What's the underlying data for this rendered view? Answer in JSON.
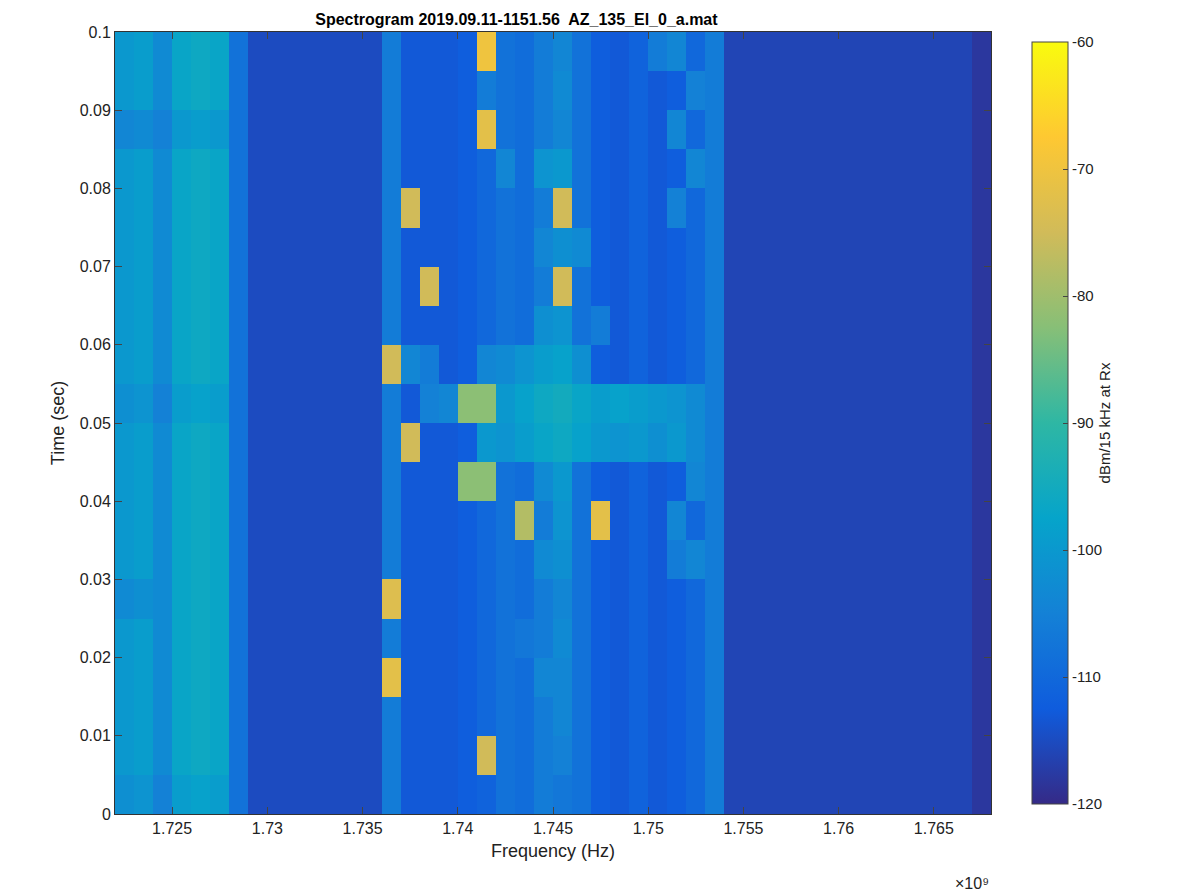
{
  "chart_data": {
    "type": "heatmap",
    "title": "Spectrogram 2019.09.11-1151.56  AZ_135_El_0_a.mat",
    "x_label": "Frequency (Hz)",
    "y_label": "Time (sec)",
    "annotations": [
      "×10⁹"
    ],
    "xlim": [
      1722000000,
      1768000000
    ],
    "xticks": [
      {
        "value": 1725000000,
        "label": "1.725"
      },
      {
        "value": 1730000000,
        "label": "1.73"
      },
      {
        "value": 1735000000,
        "label": "1.735"
      },
      {
        "value": 1740000000,
        "label": "1.74"
      },
      {
        "value": 1745000000,
        "label": "1.745"
      },
      {
        "value": 1750000000,
        "label": "1.75"
      },
      {
        "value": 1755000000,
        "label": "1.755"
      },
      {
        "value": 1760000000,
        "label": "1.76"
      },
      {
        "value": 1765000000,
        "label": "1.765"
      }
    ],
    "ylim": [
      0,
      0.1
    ],
    "yticks": [
      0,
      0.01,
      0.02,
      0.03,
      0.04,
      0.05,
      0.06,
      0.07,
      0.08,
      0.09,
      0.1
    ],
    "grid": false,
    "colorbar": {
      "title": "dBm/15 kHz at Rx",
      "range": [
        -120,
        -60
      ],
      "ticks": [
        -120,
        -110,
        -100,
        -90,
        -80,
        -70,
        -60
      ]
    },
    "x": [
      1722500000,
      1723500000,
      1724500000,
      1725500000,
      1726500000,
      1727500000,
      1728500000,
      1729500000,
      1730500000,
      1731500000,
      1732500000,
      1733500000,
      1734500000,
      1735500000,
      1736500000,
      1737500000,
      1738500000,
      1739500000,
      1740500000,
      1741500000,
      1742500000,
      1743500000,
      1744500000,
      1745500000,
      1746500000,
      1747500000,
      1748500000,
      1749500000,
      1750500000,
      1751500000,
      1752500000,
      1753500000,
      1754500000,
      1755500000,
      1756500000,
      1757500000,
      1758500000,
      1759500000,
      1760500000,
      1761500000,
      1762500000,
      1763500000,
      1764500000,
      1765500000,
      1766500000,
      1767500000
    ],
    "y": [
      0.0025,
      0.0075,
      0.0125,
      0.0175,
      0.0225,
      0.0275,
      0.0325,
      0.0375,
      0.0425,
      0.0475,
      0.0525,
      0.0575,
      0.0625,
      0.0675,
      0.0725,
      0.0775,
      0.0825,
      0.0875,
      0.0925,
      0.0975
    ],
    "z": [
      [
        -102,
        -101,
        -105,
        -99,
        -98,
        -99,
        -108,
        -115,
        -115,
        -115,
        -115,
        -115,
        -115,
        -115,
        -106,
        -113,
        -113,
        -113,
        -112,
        -111,
        -108,
        -109,
        -106,
        -107,
        -108,
        -112,
        -113,
        -111,
        -113,
        -112,
        -110,
        -106,
        -116,
        -116,
        -116,
        -116,
        -116,
        -116,
        -116,
        -116,
        -116,
        -116,
        -116,
        -116,
        -116,
        -118
      ],
      [
        -100,
        -99,
        -103,
        -97,
        -96,
        -97,
        -108,
        -115,
        -115,
        -115,
        -115,
        -115,
        -115,
        -115,
        -106,
        -113,
        -113,
        -113,
        -112,
        -75,
        -108,
        -109,
        -106,
        -105,
        -108,
        -112,
        -113,
        -111,
        -113,
        -112,
        -110,
        -106,
        -116,
        -116,
        -116,
        -116,
        -116,
        -116,
        -116,
        -116,
        -116,
        -116,
        -116,
        -116,
        -116,
        -118
      ],
      [
        -100,
        -99,
        -103,
        -97,
        -96,
        -97,
        -108,
        -115,
        -115,
        -115,
        -115,
        -115,
        -115,
        -115,
        -106,
        -113,
        -113,
        -113,
        -112,
        -110,
        -108,
        -109,
        -106,
        -104,
        -108,
        -112,
        -113,
        -111,
        -113,
        -112,
        -110,
        -106,
        -116,
        -116,
        -116,
        -116,
        -116,
        -116,
        -116,
        -116,
        -116,
        -116,
        -116,
        -116,
        -116,
        -118
      ],
      [
        -100,
        -99,
        -103,
        -97,
        -96,
        -97,
        -108,
        -115,
        -115,
        -115,
        -115,
        -115,
        -115,
        -115,
        -72,
        -113,
        -113,
        -113,
        -112,
        -110,
        -108,
        -109,
        -104,
        -104,
        -108,
        -112,
        -113,
        -111,
        -113,
        -112,
        -110,
        -106,
        -116,
        -116,
        -116,
        -116,
        -116,
        -116,
        -116,
        -116,
        -116,
        -116,
        -116,
        -116,
        -116,
        -118
      ],
      [
        -100,
        -99,
        -103,
        -97,
        -96,
        -97,
        -108,
        -115,
        -115,
        -115,
        -115,
        -115,
        -115,
        -115,
        -106,
        -113,
        -113,
        -113,
        -112,
        -110,
        -108,
        -107,
        -106,
        -103,
        -108,
        -112,
        -113,
        -111,
        -113,
        -112,
        -110,
        -106,
        -116,
        -116,
        -116,
        -116,
        -116,
        -116,
        -116,
        -116,
        -116,
        -116,
        -116,
        -116,
        -116,
        -118
      ],
      [
        -103,
        -102,
        -103,
        -97,
        -96,
        -97,
        -108,
        -115,
        -115,
        -115,
        -115,
        -115,
        -115,
        -115,
        -73,
        -113,
        -113,
        -113,
        -112,
        -110,
        -108,
        -109,
        -106,
        -104,
        -108,
        -112,
        -113,
        -111,
        -113,
        -112,
        -110,
        -106,
        -116,
        -116,
        -116,
        -116,
        -116,
        -116,
        -116,
        -116,
        -116,
        -116,
        -116,
        -116,
        -116,
        -118
      ],
      [
        -100,
        -99,
        -103,
        -97,
        -96,
        -97,
        -108,
        -115,
        -115,
        -115,
        -115,
        -115,
        -115,
        -115,
        -106,
        -113,
        -113,
        -113,
        -112,
        -110,
        -108,
        -109,
        -103,
        -102,
        -108,
        -112,
        -113,
        -111,
        -113,
        -106,
        -104,
        -106,
        -116,
        -116,
        -116,
        -116,
        -116,
        -116,
        -116,
        -116,
        -116,
        -116,
        -116,
        -116,
        -116,
        -118
      ],
      [
        -100,
        -99,
        -103,
        -97,
        -96,
        -97,
        -108,
        -115,
        -115,
        -115,
        -115,
        -115,
        -115,
        -115,
        -106,
        -113,
        -113,
        -113,
        -112,
        -110,
        -108,
        -78,
        -106,
        -101,
        -108,
        -72,
        -113,
        -111,
        -113,
        -104,
        -110,
        -106,
        -116,
        -116,
        -116,
        -116,
        -116,
        -116,
        -116,
        -116,
        -116,
        -116,
        -116,
        -116,
        -116,
        -118
      ],
      [
        -100,
        -99,
        -103,
        -97,
        -96,
        -97,
        -108,
        -115,
        -115,
        -115,
        -115,
        -115,
        -115,
        -115,
        -106,
        -113,
        -113,
        -113,
        -82,
        -82,
        -108,
        -109,
        -103,
        -100,
        -108,
        -112,
        -113,
        -111,
        -113,
        -112,
        -104,
        -106,
        -116,
        -116,
        -116,
        -116,
        -116,
        -116,
        -116,
        -116,
        -116,
        -116,
        -116,
        -116,
        -116,
        -118
      ],
      [
        -100,
        -99,
        -103,
        -97,
        -96,
        -97,
        -108,
        -115,
        -115,
        -115,
        -115,
        -115,
        -115,
        -115,
        -106,
        -75,
        -113,
        -113,
        -112,
        -100,
        -101,
        -99,
        -97,
        -96,
        -98,
        -100,
        -101,
        -100,
        -102,
        -100,
        -103,
        -106,
        -116,
        -116,
        -116,
        -116,
        -116,
        -116,
        -116,
        -116,
        -116,
        -116,
        -116,
        -116,
        -116,
        -118
      ],
      [
        -102,
        -101,
        -105,
        -99,
        -98,
        -99,
        -108,
        -115,
        -115,
        -115,
        -115,
        -115,
        -115,
        -115,
        -106,
        -113,
        -105,
        -104,
        -82,
        -82,
        -100,
        -98,
        -96,
        -95,
        -97,
        -99,
        -98,
        -99,
        -100,
        -101,
        -103,
        -106,
        -116,
        -116,
        -116,
        -116,
        -116,
        -116,
        -116,
        -116,
        -116,
        -116,
        -116,
        -116,
        -116,
        -118
      ],
      [
        -100,
        -99,
        -103,
        -97,
        -96,
        -97,
        -108,
        -115,
        -115,
        -115,
        -115,
        -115,
        -115,
        -115,
        -75,
        -104,
        -106,
        -113,
        -112,
        -104,
        -103,
        -101,
        -99,
        -98,
        -102,
        -112,
        -113,
        -111,
        -113,
        -112,
        -110,
        -106,
        -116,
        -116,
        -116,
        -116,
        -116,
        -116,
        -116,
        -116,
        -116,
        -116,
        -116,
        -116,
        -116,
        -118
      ],
      [
        -100,
        -99,
        -103,
        -97,
        -96,
        -97,
        -108,
        -115,
        -115,
        -115,
        -115,
        -115,
        -115,
        -115,
        -106,
        -113,
        -113,
        -113,
        -112,
        -110,
        -108,
        -109,
        -102,
        -101,
        -108,
        -106,
        -113,
        -111,
        -113,
        -112,
        -110,
        -106,
        -116,
        -116,
        -116,
        -116,
        -116,
        -116,
        -116,
        -116,
        -116,
        -116,
        -116,
        -116,
        -116,
        -118
      ],
      [
        -100,
        -99,
        -103,
        -97,
        -96,
        -97,
        -108,
        -115,
        -115,
        -115,
        -115,
        -115,
        -115,
        -115,
        -106,
        -113,
        -75,
        -113,
        -112,
        -110,
        -108,
        -109,
        -106,
        -75,
        -108,
        -112,
        -113,
        -111,
        -113,
        -112,
        -110,
        -106,
        -116,
        -116,
        -116,
        -116,
        -116,
        -116,
        -116,
        -116,
        -116,
        -116,
        -116,
        -116,
        -116,
        -118
      ],
      [
        -100,
        -99,
        -103,
        -97,
        -96,
        -97,
        -108,
        -115,
        -115,
        -115,
        -115,
        -115,
        -115,
        -115,
        -106,
        -113,
        -113,
        -113,
        -112,
        -110,
        -108,
        -109,
        -104,
        -102,
        -103,
        -112,
        -113,
        -111,
        -113,
        -112,
        -110,
        -106,
        -116,
        -116,
        -116,
        -116,
        -116,
        -116,
        -116,
        -116,
        -116,
        -116,
        -116,
        -116,
        -116,
        -118
      ],
      [
        -100,
        -99,
        -103,
        -97,
        -96,
        -97,
        -108,
        -115,
        -115,
        -115,
        -115,
        -115,
        -115,
        -115,
        -106,
        -75,
        -113,
        -113,
        -112,
        -110,
        -108,
        -109,
        -106,
        -75,
        -108,
        -112,
        -113,
        -111,
        -113,
        -105,
        -110,
        -106,
        -116,
        -116,
        -116,
        -116,
        -116,
        -116,
        -116,
        -116,
        -116,
        -116,
        -116,
        -116,
        -116,
        -118
      ],
      [
        -100,
        -99,
        -103,
        -97,
        -96,
        -97,
        -108,
        -115,
        -115,
        -115,
        -115,
        -115,
        -115,
        -115,
        -106,
        -113,
        -113,
        -113,
        -112,
        -110,
        -104,
        -109,
        -101,
        -100,
        -108,
        -112,
        -113,
        -111,
        -113,
        -112,
        -104,
        -106,
        -116,
        -116,
        -116,
        -116,
        -116,
        -116,
        -116,
        -116,
        -116,
        -116,
        -116,
        -116,
        -116,
        -118
      ],
      [
        -104,
        -103,
        -105,
        -100,
        -99,
        -100,
        -108,
        -115,
        -115,
        -115,
        -115,
        -115,
        -115,
        -115,
        -106,
        -113,
        -113,
        -113,
        -112,
        -72,
        -108,
        -109,
        -106,
        -104,
        -108,
        -112,
        -113,
        -111,
        -113,
        -104,
        -110,
        -106,
        -116,
        -116,
        -116,
        -116,
        -116,
        -116,
        -116,
        -116,
        -116,
        -116,
        -116,
        -116,
        -116,
        -118
      ],
      [
        -100,
        -99,
        -103,
        -97,
        -96,
        -97,
        -108,
        -115,
        -115,
        -115,
        -115,
        -115,
        -115,
        -115,
        -106,
        -113,
        -113,
        -113,
        -112,
        -106,
        -108,
        -109,
        -106,
        -103,
        -108,
        -112,
        -113,
        -111,
        -113,
        -112,
        -105,
        -106,
        -116,
        -116,
        -116,
        -116,
        -116,
        -116,
        -116,
        -116,
        -116,
        -116,
        -116,
        -116,
        -116,
        -118
      ],
      [
        -100,
        -99,
        -103,
        -97,
        -96,
        -97,
        -108,
        -115,
        -115,
        -115,
        -115,
        -115,
        -115,
        -115,
        -106,
        -113,
        -113,
        -113,
        -112,
        -70,
        -108,
        -109,
        -106,
        -104,
        -108,
        -112,
        -113,
        -111,
        -106,
        -104,
        -110,
        -106,
        -116,
        -116,
        -116,
        -116,
        -116,
        -116,
        -116,
        -116,
        -116,
        -116,
        -116,
        -116,
        -116,
        -118
      ]
    ]
  }
}
